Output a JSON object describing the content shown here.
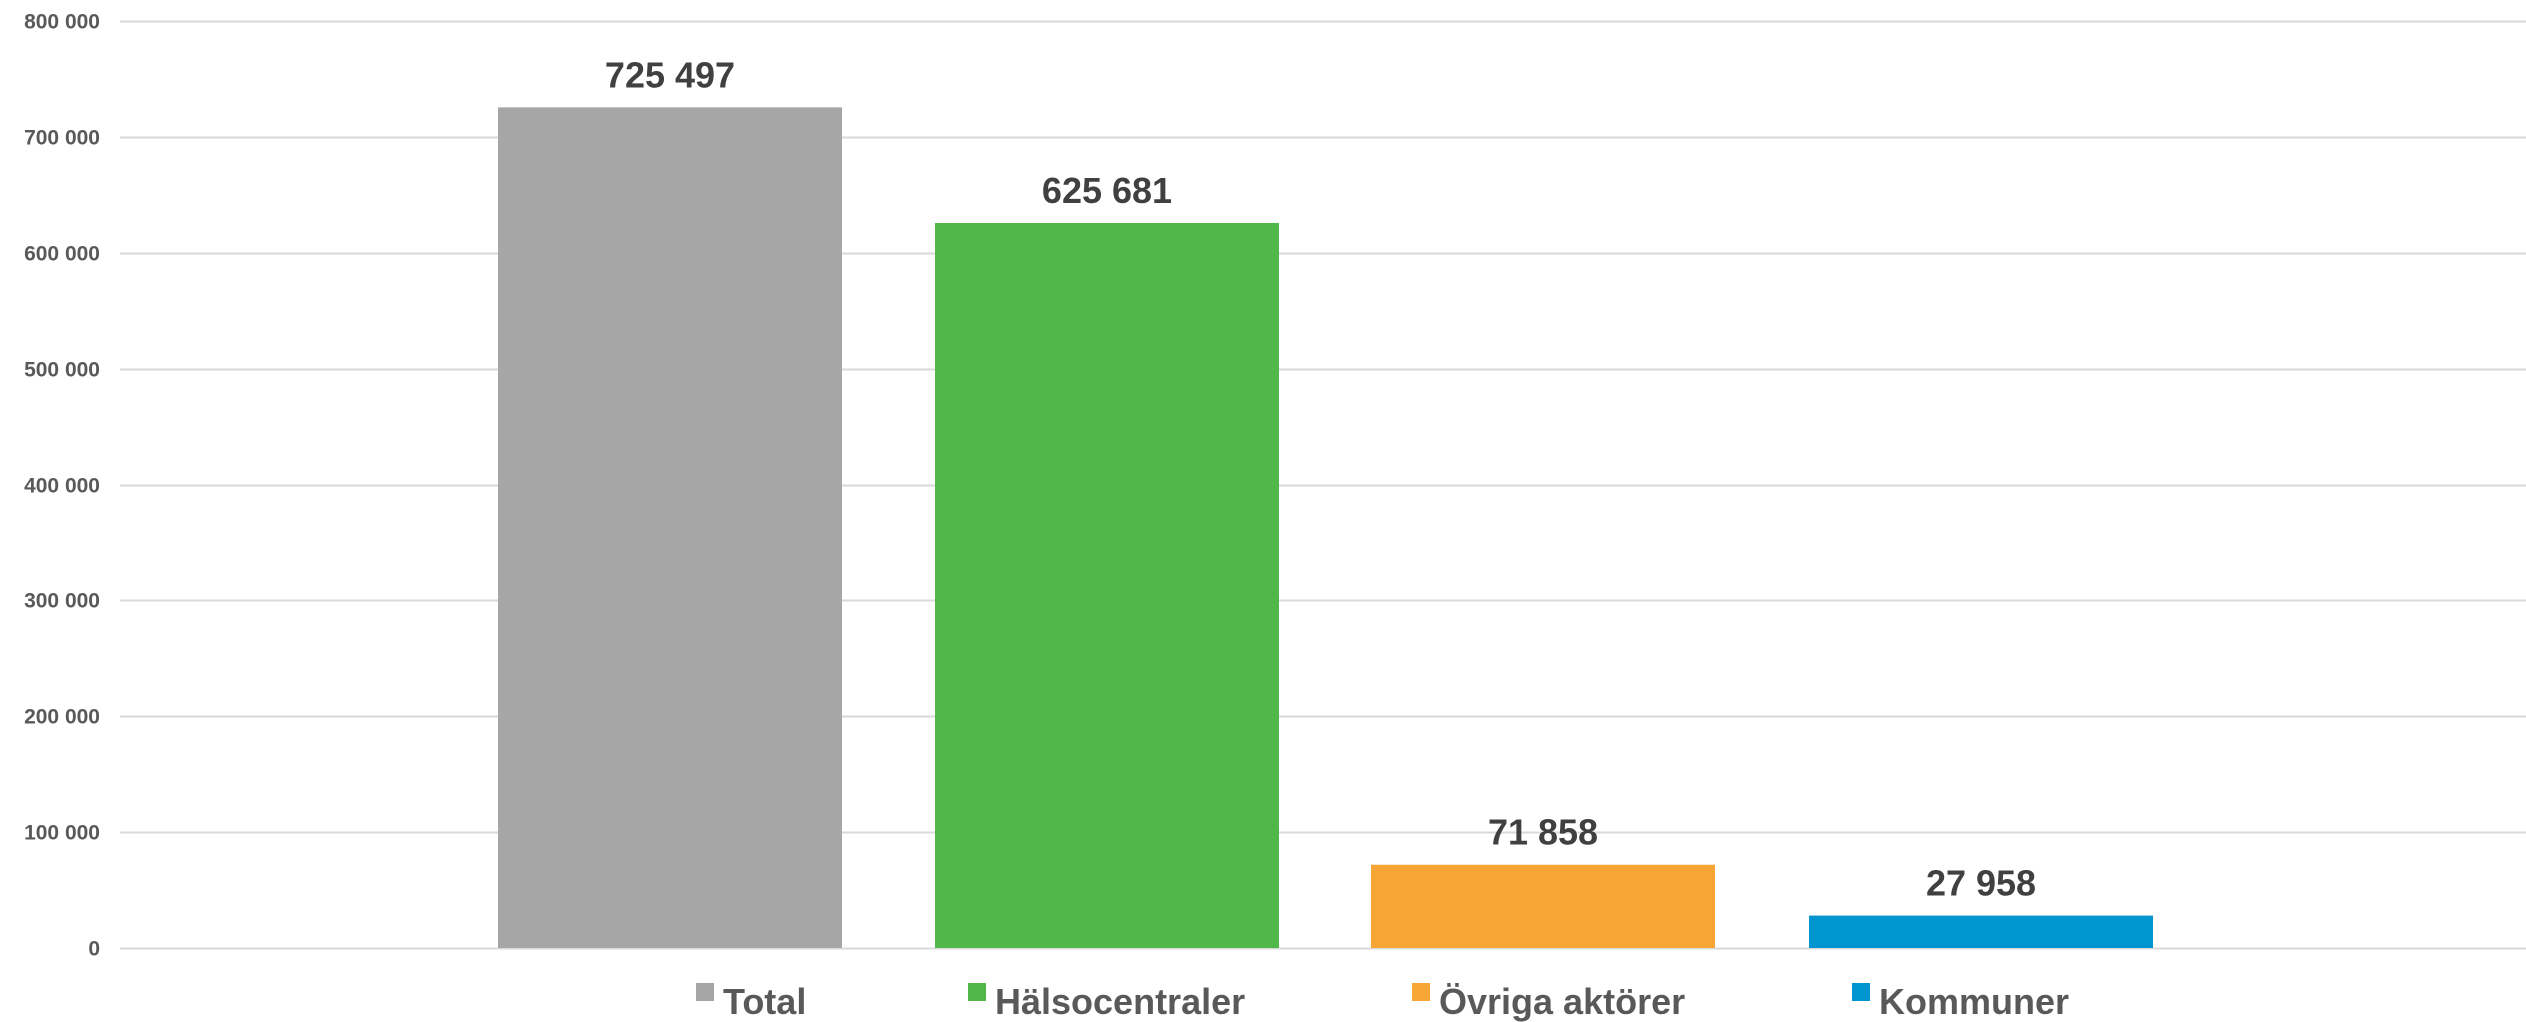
{
  "chart_data": {
    "type": "bar",
    "title": "",
    "xlabel": "",
    "ylabel": "",
    "categories": [
      "Total",
      "Hälsocentraler",
      "Övriga aktörer",
      "Kommuner"
    ],
    "values": [
      725497,
      625681,
      71858,
      27958
    ],
    "value_labels": [
      "725 497",
      "625 681",
      "71 858",
      "27 958"
    ],
    "colors": [
      "#a6a6a6",
      "#50b848",
      "#f7a535",
      "#0095cf"
    ],
    "ylim": [
      0,
      800000
    ],
    "y_ticks": [
      0,
      100000,
      200000,
      300000,
      400000,
      500000,
      600000,
      700000,
      800000
    ],
    "y_tick_labels": [
      "0",
      "100 000",
      "200 000",
      "300 000",
      "400 000",
      "500 000",
      "600 000",
      "700 000",
      "800 000"
    ],
    "grid": true,
    "legend": {
      "position": "bottom",
      "entries": [
        "Total",
        "Hälsocentraler",
        "Övriga aktörer",
        "Kommuner"
      ]
    }
  }
}
